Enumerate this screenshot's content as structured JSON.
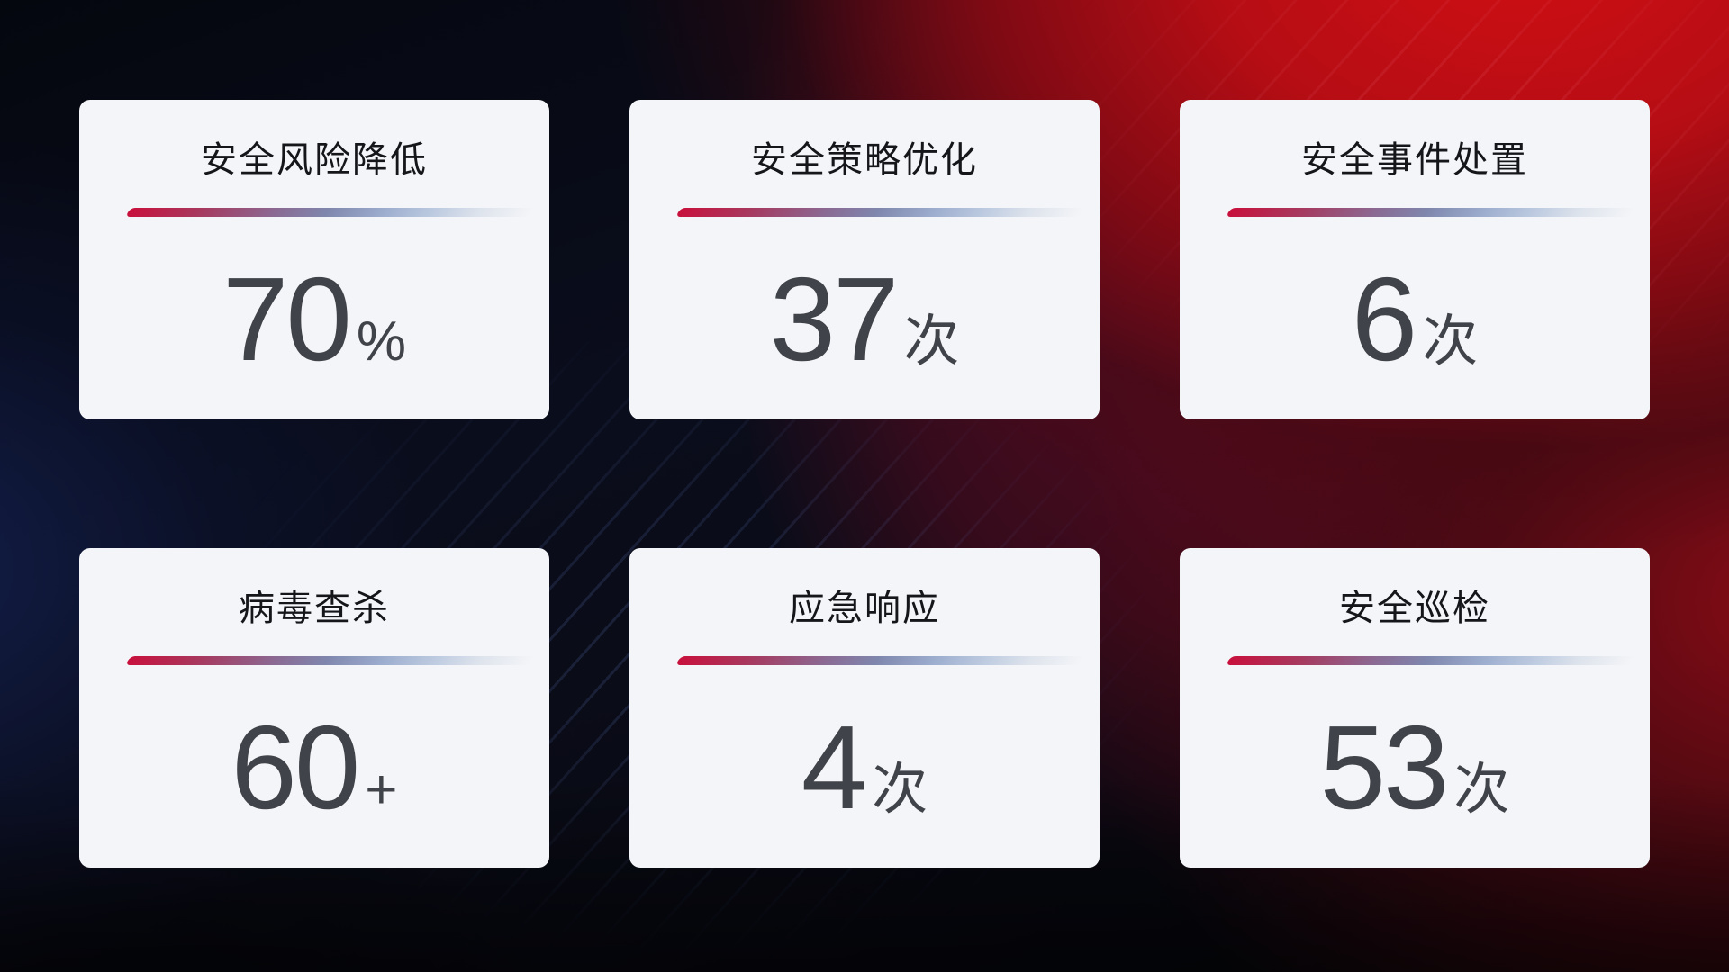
{
  "colors": {
    "accent_red": "#c8103c",
    "bright_red": "#cf0e13",
    "deep_blue": "#1c3078",
    "card_bg": "#f4f5f8",
    "title_color": "#15161a",
    "value_color": "#404349",
    "divider_gradient": [
      "#c8103c 0%",
      "#a63a60 18%",
      "#8a6a94 36%",
      "#7f86ad 48%",
      "#9cadce 62%",
      "#bfcce1 75%",
      "#dde3ec 85%",
      "rgba(244,245,248,0) 98%"
    ]
  },
  "cards": [
    {
      "id": "risk-reduction",
      "title": "安全风险降低",
      "value": "70",
      "unit": "%"
    },
    {
      "id": "policy-optimization",
      "title": "安全策略优化",
      "value": "37",
      "unit": "次"
    },
    {
      "id": "incident-handling",
      "title": "安全事件处置",
      "value": "6",
      "unit": "次"
    },
    {
      "id": "virus-scan",
      "title": "病毒查杀",
      "value": "60",
      "unit": "+"
    },
    {
      "id": "emergency-response",
      "title": "应急响应",
      "value": "4",
      "unit": "次"
    },
    {
      "id": "security-inspection",
      "title": "安全巡检",
      "value": "53",
      "unit": "次"
    }
  ]
}
